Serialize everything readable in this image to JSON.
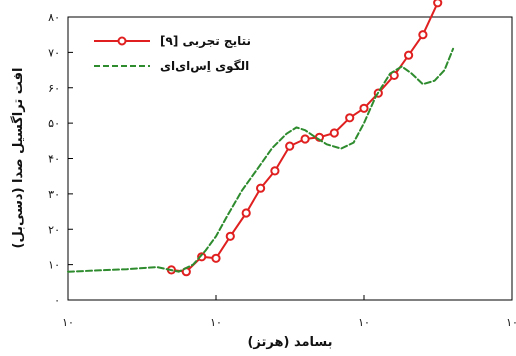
{
  "chart_data": {
    "type": "line",
    "xscale": "log",
    "xlim": [
      10,
      10000
    ],
    "ylim": [
      0,
      80
    ],
    "xticks": [
      {
        "value": 10,
        "label": "۱۰"
      },
      {
        "value": 100,
        "label": "۱۰"
      },
      {
        "value": 1000,
        "label": "۱۰"
      },
      {
        "value": 10000,
        "label": "۱۰"
      }
    ],
    "xtick_superscripts": [
      "",
      "",
      "",
      ""
    ],
    "yticks": [
      {
        "value": 0,
        "label": "۰"
      },
      {
        "value": 10,
        "label": "۱۰"
      },
      {
        "value": 20,
        "label": "۲۰"
      },
      {
        "value": 30,
        "label": "۳۰"
      },
      {
        "value": 40,
        "label": "۴۰"
      },
      {
        "value": 50,
        "label": "۵۰"
      },
      {
        "value": 60,
        "label": "۶۰"
      },
      {
        "value": 70,
        "label": "۷۰"
      },
      {
        "value": 80,
        "label": "۸۰"
      }
    ],
    "xlabel": "بسامد (هرتز)",
    "ylabel": "افت تراگسیل صدا (دسی‌بل)",
    "legend_position": "top-left",
    "series": [
      {
        "name": "نتایج تجربی [۹]",
        "color": "#e02020",
        "style": "solid-circles",
        "x": [
          50,
          63,
          80,
          100,
          125,
          160,
          200,
          250,
          315,
          400,
          500,
          630,
          800,
          1000,
          1250,
          1600,
          2000,
          2500,
          3150,
          4000
        ],
        "y": [
          8.5,
          8.0,
          12.2,
          11.8,
          18.0,
          24.6,
          31.6,
          36.5,
          43.5,
          45.5,
          46.0,
          47.2,
          51.5,
          54.2,
          58.5,
          63.5,
          69.2,
          75.0,
          84.0,
          92.4
        ]
      },
      {
        "name": "الگوی اِس‌ای‌ای",
        "color": "#2e8b2e",
        "style": "dashed",
        "x": [
          10,
          25,
          40,
          56,
          70,
          85,
          100,
          120,
          150,
          190,
          240,
          300,
          350,
          400,
          470,
          560,
          700,
          850,
          1000,
          1200,
          1500,
          1800,
          2100,
          2500,
          3000,
          3500,
          4000
        ],
        "y": [
          8.0,
          8.7,
          9.3,
          8.0,
          10.0,
          14.0,
          18.0,
          24.0,
          31.0,
          37.0,
          43.0,
          47.0,
          48.8,
          48.0,
          46.0,
          44.0,
          42.8,
          44.5,
          50.0,
          57.5,
          64.0,
          66.0,
          64.0,
          61.0,
          62.0,
          65.0,
          71.0
        ]
      }
    ]
  }
}
